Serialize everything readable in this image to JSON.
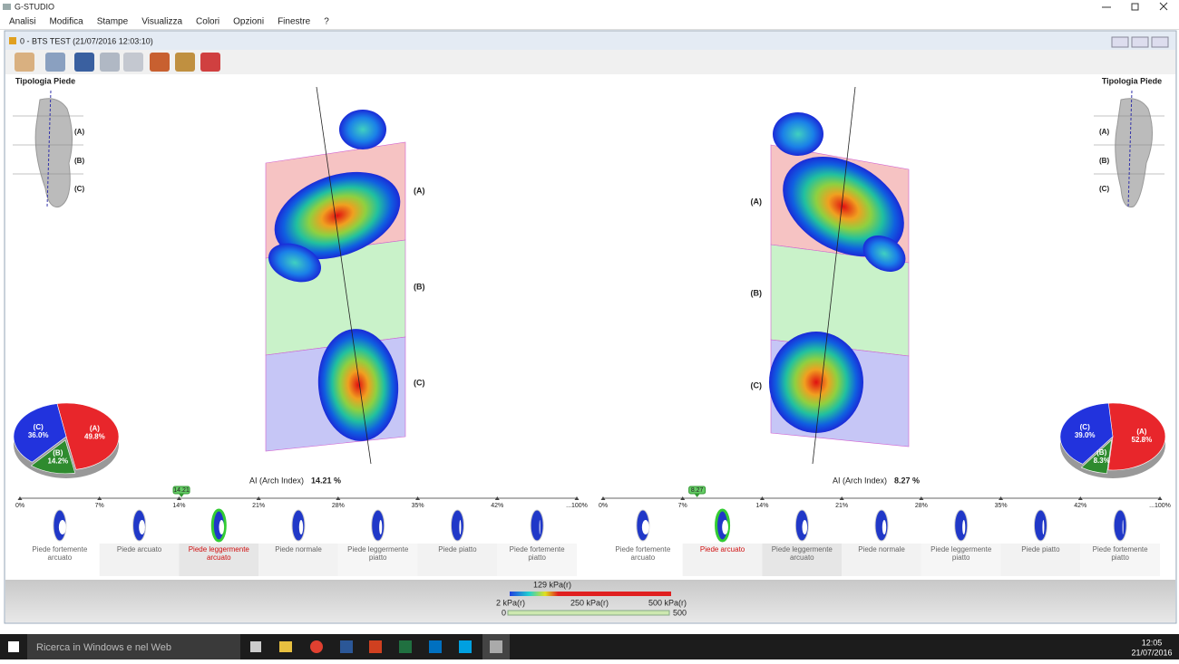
{
  "window": {
    "title": "G-STUDIO"
  },
  "menu": [
    "Analisi",
    "Modifica",
    "Stampe",
    "Visualizza",
    "Colori",
    "Opzioni",
    "Finestre",
    "?"
  ],
  "document": {
    "title": "0 - BTS TEST  (21/07/2016 12:03:10)"
  },
  "scale_ticks": [
    {
      "value": 0,
      "label": "0%"
    },
    {
      "value": 7,
      "label": "7%"
    },
    {
      "value": 14,
      "label": "14%"
    },
    {
      "value": 21,
      "label": "21%"
    },
    {
      "value": 28,
      "label": "28%"
    },
    {
      "value": 35,
      "label": "35%"
    },
    {
      "value": 42,
      "label": "42%"
    },
    {
      "value": 100,
      "label": "...100%"
    }
  ],
  "categories": [
    "Piede fortemente arcuato",
    "Piede arcuato",
    "Piede leggermente arcuato",
    "Piede normale",
    "Piede leggermente piatto",
    "Piede piatto",
    "Piede fortemente piatto"
  ],
  "feet": [
    {
      "type_title": "Tipologia Piede",
      "zones": [
        "(A)",
        "(B)",
        "(C)"
      ],
      "pie": {
        "values": [
          49.8,
          14.2,
          36.0
        ],
        "value_labels": [
          "49.8%",
          "14.2%",
          "36.0%"
        ],
        "colors": [
          "#e8262b",
          "#2e8b2e",
          "#2233dd"
        ]
      },
      "arch_index_label": "AI (Arch Index)",
      "arch_index": 14.21,
      "arch_index_label_value": "14.21 %",
      "selected": 2
    },
    {
      "type_title": "Tipologia Piede",
      "zones": [
        "(A)",
        "(B)",
        "(C)"
      ],
      "pie": {
        "values": [
          52.8,
          8.3,
          39.0
        ],
        "value_labels": [
          "52.8%",
          "8.3%",
          "39.0%"
        ],
        "colors": [
          "#e8262b",
          "#2e8b2e",
          "#2233dd"
        ]
      },
      "arch_index_label": "AI (Arch Index)",
      "arch_index": 8.27,
      "arch_index_label_value": "8.27 %",
      "selected": 1
    }
  ],
  "pressure_legend": {
    "current": "129 kPa(r)",
    "min": "2 kPa(r)",
    "mid": "250 kPa(r)",
    "max": "500 kPa(r)",
    "slider_min": "0",
    "slider_max": "500"
  },
  "taskbar": {
    "search": "Ricerca in Windows e nel Web",
    "time": "12:05",
    "date": "21/07/2016"
  }
}
